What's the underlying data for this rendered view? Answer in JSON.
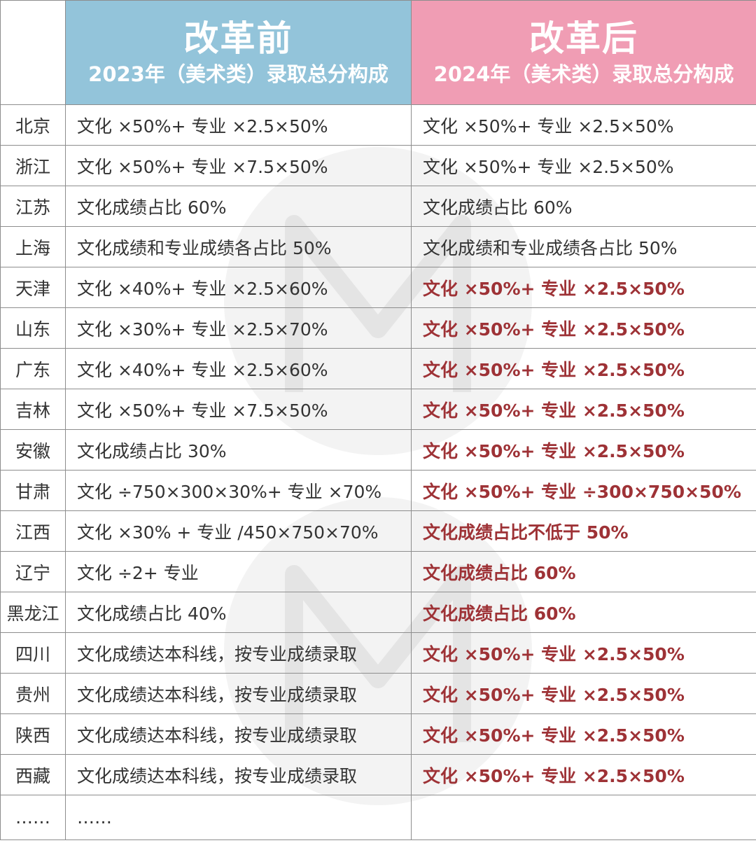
{
  "header": {
    "before_title": "改革前",
    "before_subtitle": "2023年（美术类）录取总分构成",
    "after_title": "改革后",
    "after_subtitle": "2024年（美术类）录取总分构成"
  },
  "rows": [
    {
      "province": "北京",
      "before": "文化 ×50%+ 专业 ×2.5×50%",
      "after": "文化 ×50%+ 专业 ×2.5×50%"
    },
    {
      "province": "浙江",
      "before": "文化 ×50%+ 专业 ×7.5×50%",
      "after": "文化 ×50%+ 专业 ×2.5×50%"
    },
    {
      "province": "江苏",
      "before": "文化成绩占比 60%",
      "after": "文化成绩占比 60%"
    },
    {
      "province": "上海",
      "before": "文化成绩和专业成绩各占比 50%",
      "after": "文化成绩和专业成绩各占比 50%"
    },
    {
      "province": "天津",
      "before": "文化 ×40%+ 专业 ×2.5×60%",
      "after": "文化 ×50%+ 专业 ×2.5×50%"
    },
    {
      "province": "山东",
      "before": "文化 ×30%+ 专业 ×2.5×70%",
      "after": "文化 ×50%+ 专业 ×2.5×50%"
    },
    {
      "province": "广东",
      "before": "文化 ×40%+ 专业 ×2.5×60%",
      "after": "文化 ×50%+ 专业 ×2.5×50%"
    },
    {
      "province": "吉林",
      "before": "文化 ×50%+ 专业 ×7.5×50%",
      "after": "文化 ×50%+ 专业 ×2.5×50%"
    },
    {
      "province": "安徽",
      "before": "文化成绩占比 30%",
      "after": "文化 ×50%+ 专业 ×2.5×50%"
    },
    {
      "province": "甘肃",
      "before": "文化 ÷750×300×30%+ 专业 ×70%",
      "after": "文化 ×50%+ 专业 ÷300×750×50%"
    },
    {
      "province": "江西",
      "before": "文化 ×30% + 专业 /450×750×70%",
      "after": "文化成绩占比不低于 50%"
    },
    {
      "province": "辽宁",
      "before": "文化 ÷2+ 专业",
      "after": "文化成绩占比 60%"
    },
    {
      "province": "黑龙江",
      "before": "文化成绩占比 40%",
      "after": "文化成绩占比 60%"
    },
    {
      "province": "四川",
      "before": "文化成绩达本科线，按专业成绩录取",
      "after": "文化 ×50%+ 专业 ×2.5×50%"
    },
    {
      "province": "贵州",
      "before": "文化成绩达本科线，按专业成绩录取",
      "after": "文化 ×50%+ 专业 ×2.5×50%"
    },
    {
      "province": "陕西",
      "before": "文化成绩达本科线，按专业成绩录取",
      "after": "文化 ×50%+ 专业 ×2.5×50%"
    },
    {
      "province": "西藏",
      "before": "文化成绩达本科线，按专业成绩录取",
      "after": "文化 ×50%+ 专业 ×2.5×50%"
    },
    {
      "province": "……",
      "before": "……",
      "after": ""
    }
  ],
  "colors": {
    "before_header": "#93c4da",
    "after_header": "#f09db4",
    "highlight_text": "#9e3236",
    "body_text": "#333333",
    "grid": "#8d8d8d"
  }
}
